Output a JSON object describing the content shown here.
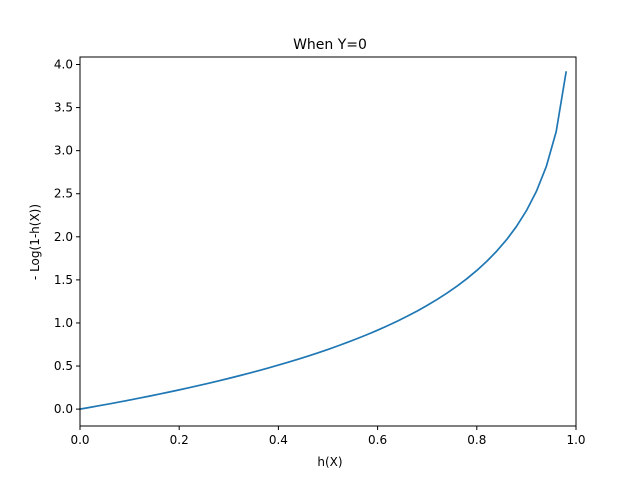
{
  "chart_data": {
    "type": "line",
    "title": "When Y=0",
    "xlabel": "h(X)",
    "ylabel": "- Log(1-h(X))",
    "xlim": [
      0.0,
      1.0
    ],
    "ylim": [
      -0.196,
      4.087
    ],
    "xticks": [
      0.0,
      0.2,
      0.4,
      0.6,
      0.8,
      1.0
    ],
    "xtick_labels": [
      "0.0",
      "0.2",
      "0.4",
      "0.6",
      "0.8",
      "1.0"
    ],
    "yticks": [
      0.0,
      0.5,
      1.0,
      1.5,
      2.0,
      2.5,
      3.0,
      3.5,
      4.0
    ],
    "ytick_labels": [
      "0.0",
      "0.5",
      "1.0",
      "1.5",
      "2.0",
      "2.5",
      "3.0",
      "3.5",
      "4.0"
    ],
    "grid": false,
    "series": [
      {
        "color": "#1f77b4",
        "x": [
          0.0,
          0.02,
          0.04,
          0.06,
          0.08,
          0.1,
          0.12,
          0.14,
          0.16,
          0.18,
          0.2,
          0.22,
          0.24,
          0.26,
          0.28,
          0.3,
          0.32,
          0.34,
          0.36,
          0.38,
          0.4,
          0.42,
          0.44,
          0.46,
          0.48,
          0.5,
          0.52,
          0.54,
          0.56,
          0.58,
          0.6,
          0.62,
          0.64,
          0.66,
          0.68,
          0.7,
          0.72,
          0.74,
          0.76,
          0.78,
          0.8,
          0.82,
          0.84,
          0.86,
          0.88,
          0.9,
          0.92,
          0.94,
          0.96,
          0.98
        ],
        "y": [
          0.0,
          0.0202,
          0.0408,
          0.0619,
          0.0834,
          0.1054,
          0.1278,
          0.1508,
          0.1744,
          0.1985,
          0.2231,
          0.2485,
          0.2744,
          0.3011,
          0.3285,
          0.3567,
          0.3857,
          0.4155,
          0.4463,
          0.478,
          0.5108,
          0.5447,
          0.5798,
          0.6162,
          0.6539,
          0.6931,
          0.734,
          0.7765,
          0.821,
          0.8675,
          0.9163,
          0.9676,
          1.0217,
          1.0788,
          1.1394,
          1.204,
          1.273,
          1.3471,
          1.4271,
          1.5141,
          1.6094,
          1.7148,
          1.8326,
          1.9661,
          2.1203,
          2.3026,
          2.5257,
          2.8134,
          3.2189,
          3.912
        ]
      }
    ]
  }
}
